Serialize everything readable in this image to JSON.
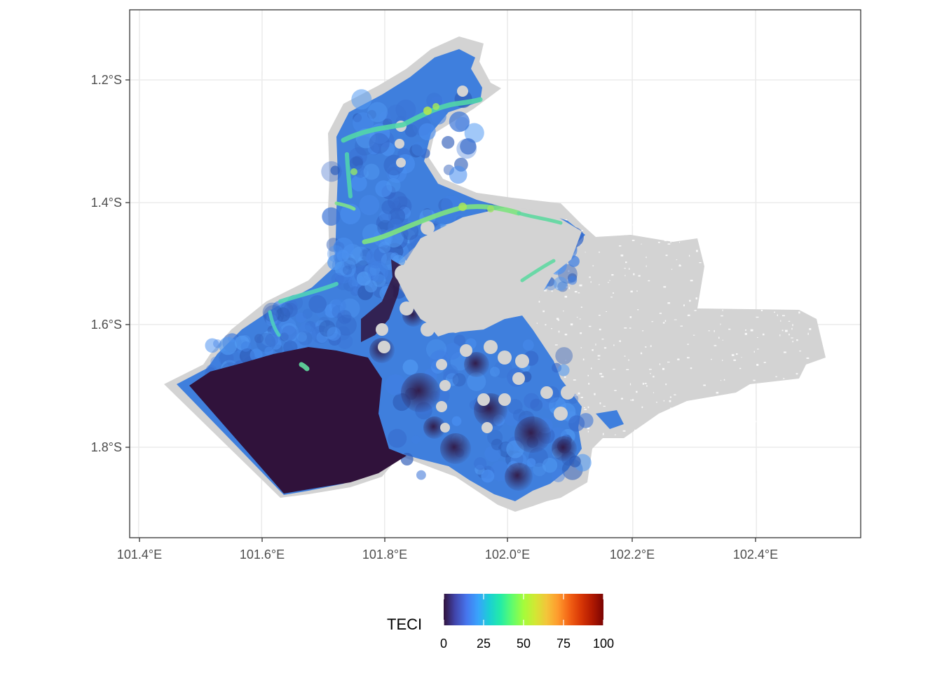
{
  "map": {
    "x_axis": {
      "ticks": [
        "101.4°E",
        "101.6°E",
        "101.8°E",
        "102.0°E",
        "102.2°E",
        "102.4°E"
      ]
    },
    "y_axis": {
      "ticks": [
        "1.2°S",
        "1.4°S",
        "1.6°S",
        "1.8°S"
      ]
    },
    "colors": {
      "panel_background": "#ffffff",
      "grid": "#ebebeb",
      "no_data_region": "#d3d3d3",
      "low_value": "#30123b",
      "field_base": "#3a7be0"
    }
  },
  "legend": {
    "title": "TECI",
    "ticks": [
      "0",
      "25",
      "50",
      "75",
      "100"
    ],
    "colormap": [
      "#30123b",
      "#4145ab",
      "#4675ed",
      "#39a2fc",
      "#1bcfd4",
      "#24eca6",
      "#61fc6c",
      "#a4fc3b",
      "#d1e834",
      "#f3c63a",
      "#fe9b2d",
      "#f36315",
      "#d93806",
      "#b11901",
      "#7a0403"
    ]
  }
}
